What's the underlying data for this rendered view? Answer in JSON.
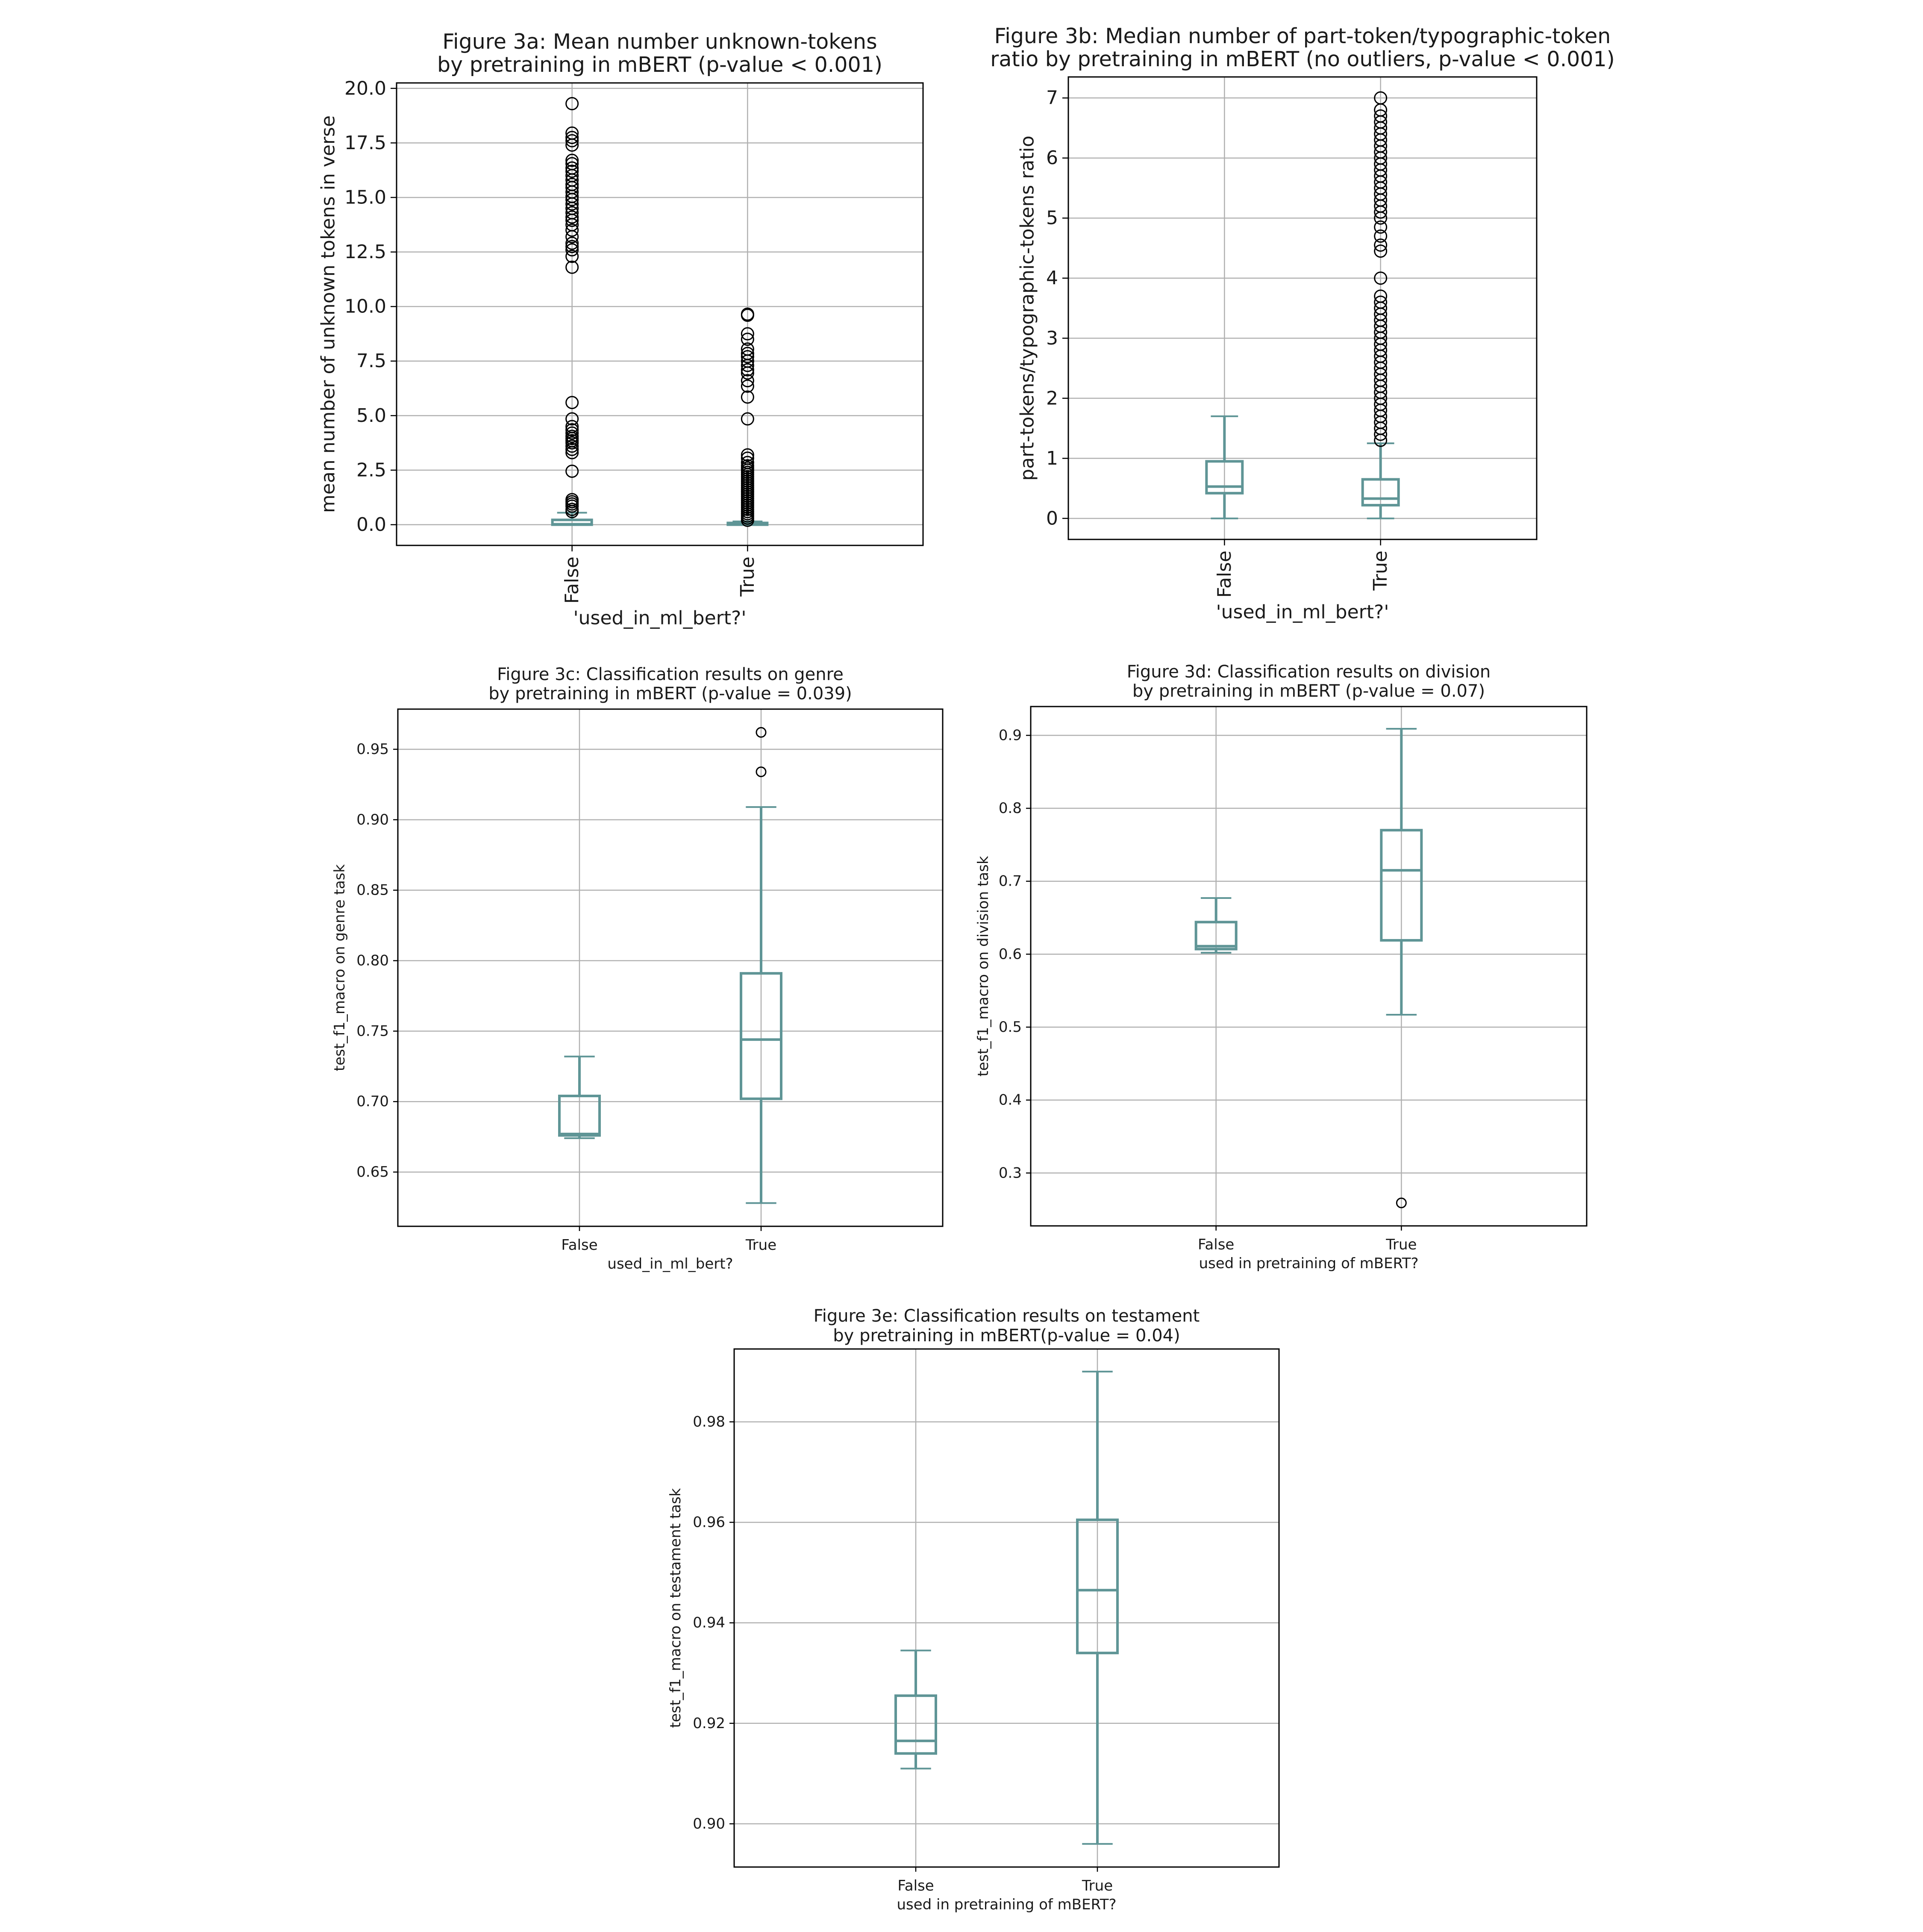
{
  "box_color": "#5f9596",
  "grid_color": "#b0b0b0",
  "outlier_color": "#000000",
  "chart_data": [
    {
      "id": "3a",
      "type": "box",
      "title": "Figure 3a: Mean number unknown-tokens\nby pretraining in mBERT (p-value < 0.001)",
      "xlabel": "'used_in_ml_bert?'",
      "ylabel": "mean number of unknown tokens in verse",
      "ylim": [
        -0.95,
        20.25
      ],
      "yticks": [
        0.0,
        2.5,
        5.0,
        7.5,
        10.0,
        12.5,
        15.0,
        17.5,
        20.0
      ],
      "ytick_labels": [
        "0.0",
        "2.5",
        "5.0",
        "7.5",
        "10.0",
        "12.5",
        "15.0",
        "17.5",
        "20.0"
      ],
      "xtick_rotation": "vertical",
      "grid": true,
      "boxes": [
        {
          "label": "False",
          "whisker_low": 0.0,
          "q1": 0.0,
          "median": 0.02,
          "q3": 0.22,
          "whisker_high": 0.55,
          "outliers": [
            0.6,
            0.7,
            0.85,
            0.95,
            1.05,
            1.15,
            2.45,
            3.3,
            3.45,
            3.6,
            3.75,
            3.85,
            3.95,
            4.05,
            4.2,
            4.35,
            4.5,
            4.85,
            5.6,
            11.8,
            12.3,
            12.6,
            12.75,
            12.9,
            13.2,
            13.5,
            13.75,
            13.95,
            14.1,
            14.3,
            14.5,
            14.7,
            14.9,
            15.05,
            15.25,
            15.45,
            15.6,
            15.8,
            16.0,
            16.2,
            16.35,
            16.55,
            16.7,
            17.4,
            17.6,
            17.75,
            17.95,
            19.3
          ]
        },
        {
          "label": "True",
          "whisker_low": 0.0,
          "q1": 0.0,
          "median": 0.0,
          "q3": 0.08,
          "whisker_high": 0.15,
          "outliers": [
            0.2,
            0.3,
            0.4,
            0.5,
            0.6,
            0.7,
            0.8,
            0.9,
            1.0,
            1.1,
            1.2,
            1.3,
            1.4,
            1.5,
            1.6,
            1.7,
            1.8,
            1.9,
            2.0,
            2.1,
            2.2,
            2.3,
            2.4,
            2.5,
            2.6,
            2.7,
            2.85,
            3.05,
            3.2,
            4.85,
            5.85,
            6.35,
            6.6,
            6.95,
            7.1,
            7.3,
            7.5,
            7.7,
            7.85,
            8.05,
            8.5,
            8.75,
            9.6,
            9.65
          ]
        }
      ]
    },
    {
      "id": "3b",
      "type": "box",
      "title": "Figure 3b: Median number of part-token/typographic-token\nratio by pretraining in mBERT (no outliers, p-value < 0.001)",
      "xlabel": "'used_in_ml_bert?'",
      "ylabel": "part-tokens/typographic-tokens ratio",
      "ylim": [
        -0.35,
        7.35
      ],
      "yticks": [
        0,
        1,
        2,
        3,
        4,
        5,
        6,
        7
      ],
      "ytick_labels": [
        "0",
        "1",
        "2",
        "3",
        "4",
        "5",
        "6",
        "7"
      ],
      "xtick_rotation": "vertical",
      "grid": true,
      "boxes": [
        {
          "label": "False",
          "whisker_low": 0.0,
          "q1": 0.42,
          "median": 0.53,
          "q3": 0.95,
          "whisker_high": 1.7,
          "outliers": []
        },
        {
          "label": "True",
          "whisker_low": 0.0,
          "q1": 0.22,
          "median": 0.33,
          "q3": 0.65,
          "whisker_high": 1.25,
          "outliers": [
            1.3,
            1.4,
            1.5,
            1.6,
            1.7,
            1.8,
            1.9,
            2.0,
            2.1,
            2.2,
            2.3,
            2.4,
            2.5,
            2.6,
            2.7,
            2.8,
            2.9,
            3.0,
            3.1,
            3.2,
            3.3,
            3.4,
            3.5,
            3.6,
            3.7,
            4.0,
            4.45,
            4.55,
            4.7,
            4.85,
            5.0,
            5.1,
            5.2,
            5.3,
            5.4,
            5.5,
            5.6,
            5.7,
            5.8,
            5.9,
            6.0,
            6.1,
            6.2,
            6.3,
            6.4,
            6.5,
            6.6,
            6.7,
            6.8,
            7.0
          ]
        }
      ]
    },
    {
      "id": "3c",
      "type": "box",
      "title": "Figure 3c: Classification results on genre\nby pretraining in mBERT (p-value = 0.039)",
      "xlabel": "used_in_ml_bert?",
      "ylabel": "test_f1_macro on genre task",
      "ylim": [
        0.6115,
        0.9785
      ],
      "yticks": [
        0.65,
        0.7,
        0.75,
        0.8,
        0.85,
        0.9,
        0.95
      ],
      "ytick_labels": [
        "0.65",
        "0.70",
        "0.75",
        "0.80",
        "0.85",
        "0.90",
        "0.95"
      ],
      "xtick_rotation": "horizontal",
      "grid": true,
      "boxes": [
        {
          "label": "False",
          "whisker_low": 0.674,
          "q1": 0.676,
          "median": 0.677,
          "q3": 0.704,
          "whisker_high": 0.732,
          "outliers": []
        },
        {
          "label": "True",
          "whisker_low": 0.628,
          "q1": 0.702,
          "median": 0.744,
          "q3": 0.791,
          "whisker_high": 0.909,
          "outliers": [
            0.934,
            0.962
          ]
        }
      ]
    },
    {
      "id": "3d",
      "type": "box",
      "title": "Figure 3d: Classification results on division\nby pretraining in mBERT (p-value = 0.07)",
      "xlabel": "used in pretraining of mBERT?",
      "ylabel": "test_f1_macro on division task",
      "ylim": [
        0.2275,
        0.9395
      ],
      "yticks": [
        0.3,
        0.4,
        0.5,
        0.6,
        0.7,
        0.8,
        0.9
      ],
      "ytick_labels": [
        "0.3",
        "0.4",
        "0.5",
        "0.6",
        "0.7",
        "0.8",
        "0.9"
      ],
      "xtick_rotation": "horizontal",
      "grid": true,
      "boxes": [
        {
          "label": "False",
          "whisker_low": 0.602,
          "q1": 0.607,
          "median": 0.611,
          "q3": 0.644,
          "whisker_high": 0.677,
          "outliers": []
        },
        {
          "label": "True",
          "whisker_low": 0.517,
          "q1": 0.619,
          "median": 0.715,
          "q3": 0.77,
          "whisker_high": 0.909,
          "outliers": [
            0.259
          ]
        }
      ]
    },
    {
      "id": "3e",
      "type": "box",
      "title": "Figure 3e: Classification results on testament\nby pretraining in mBERT(p-value = 0.04)",
      "xlabel": "used in pretraining of mBERT?",
      "ylabel": "test_f1_macro on testament task",
      "ylim": [
        0.8914,
        0.9945
      ],
      "yticks": [
        0.9,
        0.92,
        0.94,
        0.96,
        0.98
      ],
      "ytick_labels": [
        "0.90",
        "0.92",
        "0.94",
        "0.96",
        "0.98"
      ],
      "xtick_rotation": "horizontal",
      "grid": true,
      "boxes": [
        {
          "label": "False",
          "whisker_low": 0.911,
          "q1": 0.914,
          "median": 0.9165,
          "q3": 0.9255,
          "whisker_high": 0.9345,
          "outliers": []
        },
        {
          "label": "True",
          "whisker_low": 0.896,
          "q1": 0.934,
          "median": 0.9465,
          "q3": 0.9605,
          "whisker_high": 0.99,
          "outliers": []
        }
      ]
    }
  ]
}
